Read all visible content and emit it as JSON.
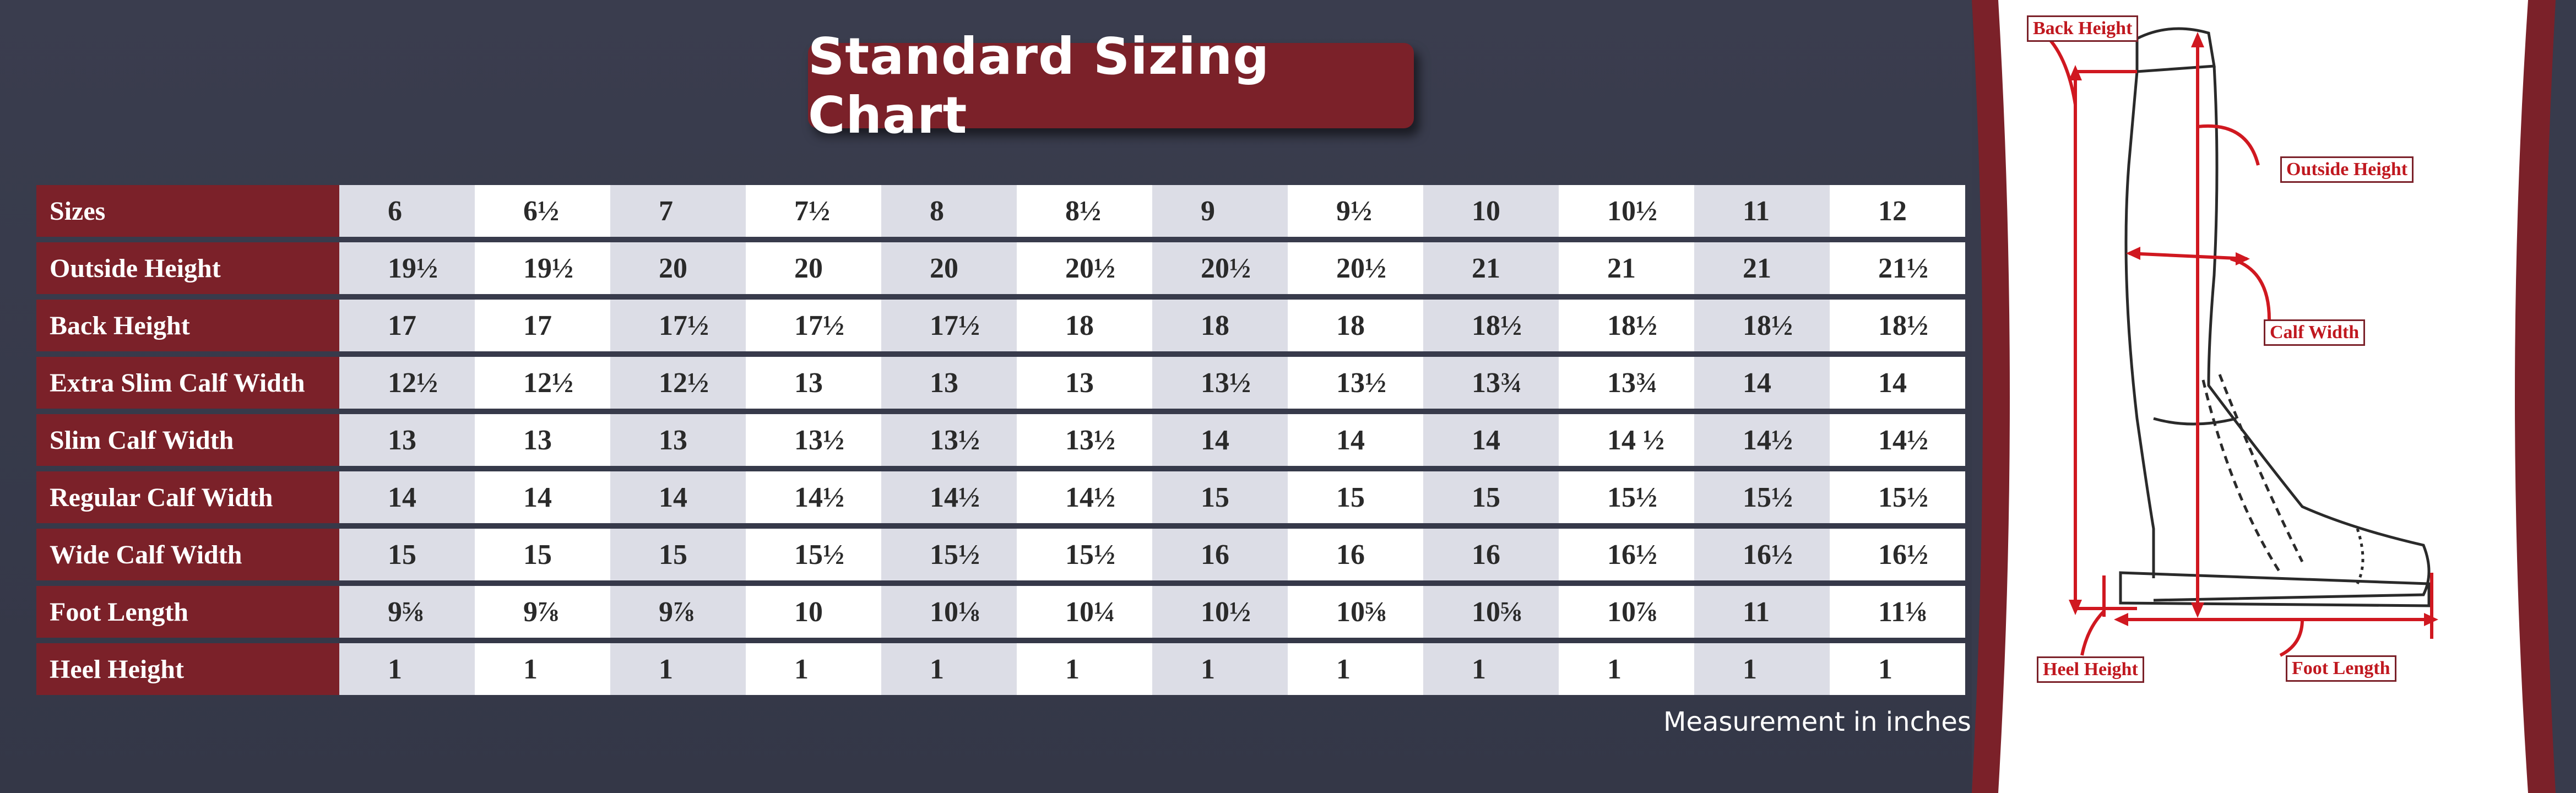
{
  "title": "Standard Sizing Chart",
  "note": "Measurement in inches",
  "colors": {
    "accent": "#7b2129",
    "background": "#383b4c",
    "cell_shade": "#dcdde6",
    "arrow": "#d01820"
  },
  "table": {
    "rows": [
      {
        "label": "Sizes",
        "values": [
          "6",
          "6½",
          "7",
          "7½",
          "8",
          "8½",
          "9",
          "9½",
          "10",
          "10½",
          "11",
          "12"
        ]
      },
      {
        "label": "Outside Height",
        "values": [
          "19½",
          "19½",
          "20",
          "20",
          "20",
          "20½",
          "20½",
          "20½",
          "21",
          "21",
          "21",
          "21½"
        ]
      },
      {
        "label": "Back Height",
        "values": [
          "17",
          "17",
          "17½",
          "17½",
          "17½",
          "18",
          "18",
          "18",
          "18½",
          "18½",
          "18½",
          "18½"
        ]
      },
      {
        "label": "Extra Slim Calf Width",
        "values": [
          "12½",
          "12½",
          "12½",
          "13",
          "13",
          "13",
          "13½",
          "13½",
          "13¾",
          "13¾",
          "14",
          "14"
        ]
      },
      {
        "label": "Slim Calf Width",
        "values": [
          "13",
          "13",
          "13",
          "13½",
          "13½",
          "13½",
          "14",
          "14",
          "14",
          "14 ½",
          "14½",
          "14½"
        ]
      },
      {
        "label": "Regular Calf Width",
        "values": [
          "14",
          "14",
          "14",
          "14½",
          "14½",
          "14½",
          "15",
          "15",
          "15",
          "15½",
          "15½",
          "15½"
        ]
      },
      {
        "label": "Wide Calf Width",
        "values": [
          "15",
          "15",
          "15",
          "15½",
          "15½",
          "15½",
          "16",
          "16",
          "16",
          "16½",
          "16½",
          "16½"
        ]
      },
      {
        "label": "Foot Length",
        "values": [
          "9⅝",
          "9⅞",
          "9⅞",
          "10",
          "10⅛",
          "10¼",
          "10½",
          "10⅝",
          "10⅝",
          "10⅞",
          "11",
          "11⅛"
        ]
      },
      {
        "label": "Heel Height",
        "values": [
          "1",
          "1",
          "1",
          "1",
          "1",
          "1",
          "1",
          "1",
          "1",
          "1",
          "1",
          "1"
        ]
      }
    ]
  },
  "diagram": {
    "labels": {
      "back_height": "Back Height",
      "outside_height": "Outside Height",
      "calf_width": "Calf Width",
      "heel_height": "Heel Height",
      "foot_length": "Foot Length"
    }
  }
}
